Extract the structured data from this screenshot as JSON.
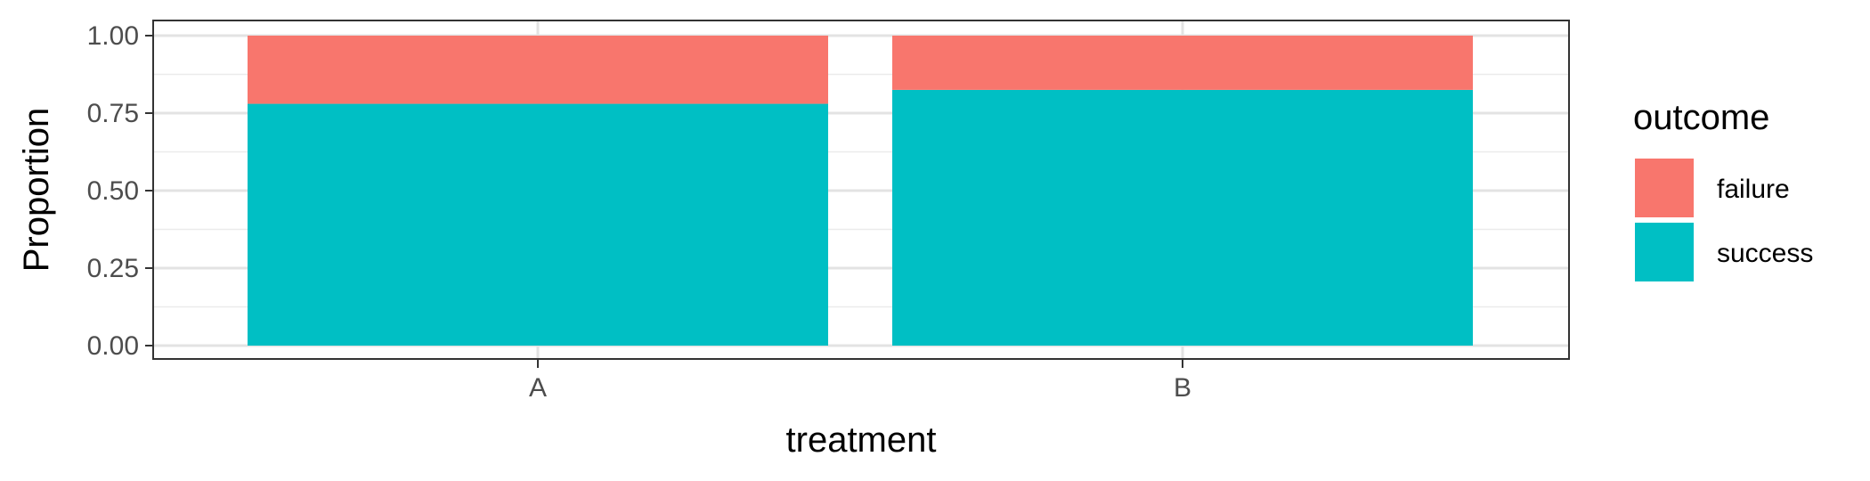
{
  "chart_data": {
    "type": "bar",
    "stacked": true,
    "categories": [
      "A",
      "B"
    ],
    "series": [
      {
        "name": "failure",
        "values": [
          0.22,
          0.175
        ],
        "color": "#F8766D"
      },
      {
        "name": "success",
        "values": [
          0.78,
          0.825
        ],
        "color": "#00BFC4"
      }
    ],
    "xlabel": "treatment",
    "ylabel": "Proportion",
    "ylim": [
      0,
      1
    ],
    "yticks": [
      0,
      0.25,
      0.5,
      0.75,
      1
    ],
    "ytick_labels": [
      "0.00",
      "0.25",
      "0.50",
      "0.75",
      "1.00"
    ],
    "grid": true,
    "legend": {
      "title": "outcome",
      "position": "right",
      "entries": [
        "failure",
        "success"
      ]
    }
  }
}
